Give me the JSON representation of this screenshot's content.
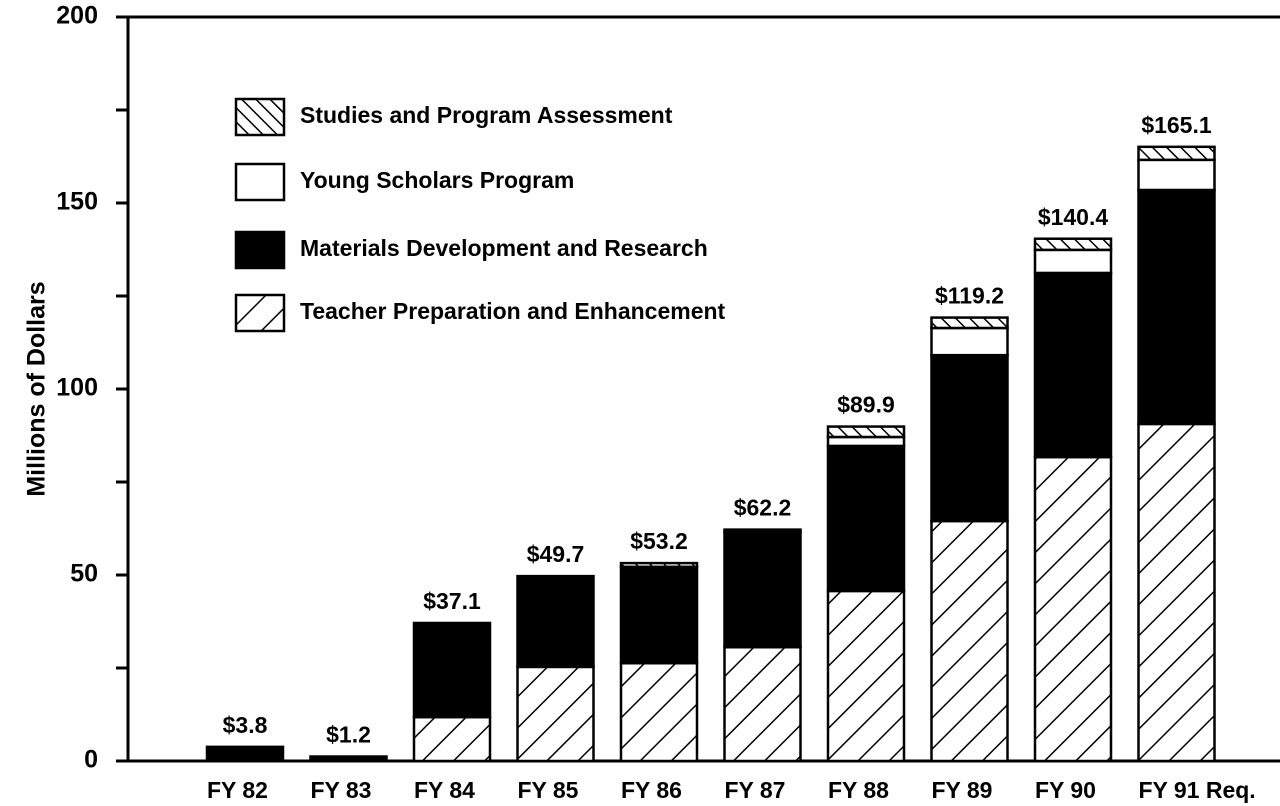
{
  "chart_data": {
    "type": "stacked-bar",
    "y_label": "Millions of Dollars",
    "categories": [
      "FY 82",
      "FY 83",
      "FY 84",
      "FY 85",
      "FY 86",
      "FY 87",
      "FY 88",
      "FY 89",
      "FY 90",
      "FY 91 Req."
    ],
    "series": [
      {
        "name": "Teacher Preparation and Enhancement",
        "color": "#000000",
        "style": "hatch-forward",
        "values": [
          0,
          0,
          11.8,
          25.3,
          26.3,
          30.6,
          45.7,
          64.5,
          81.7,
          90.6
        ]
      },
      {
        "name": "Materials Development and Research",
        "color": "#000000",
        "style": "solid",
        "values": [
          3.8,
          1.2,
          25.3,
          24.4,
          25.9,
          31.0,
          39.0,
          44.6,
          49.5,
          62.9
        ]
      },
      {
        "name": "Young Scholars Program",
        "color": "#000000",
        "style": "empty",
        "values": [
          0,
          0,
          0,
          0,
          0,
          0,
          2.4,
          7.3,
          6.2,
          8.1
        ]
      },
      {
        "name": "Studies and Program Assessment",
        "color": "#000000",
        "style": "hatch-backward",
        "values": [
          0,
          0,
          0,
          0,
          1.0,
          0.6,
          2.8,
          2.8,
          3.0,
          3.5
        ]
      }
    ],
    "totals": [
      3.8,
      1.2,
      37.1,
      49.7,
      53.2,
      62.2,
      89.9,
      119.2,
      140.4,
      165.1
    ],
    "total_labels": [
      "$3.8",
      "$1.2",
      "$37.1",
      "$49.7",
      "$53.2",
      "$62.2",
      "$89.9",
      "$119.2",
      "$140.4",
      "$165.1"
    ],
    "ylim": [
      0,
      200
    ],
    "yticks": [
      0,
      50,
      100,
      150,
      200
    ],
    "minor_yticks": [
      25,
      75,
      125,
      175
    ],
    "legend": "upper left"
  }
}
